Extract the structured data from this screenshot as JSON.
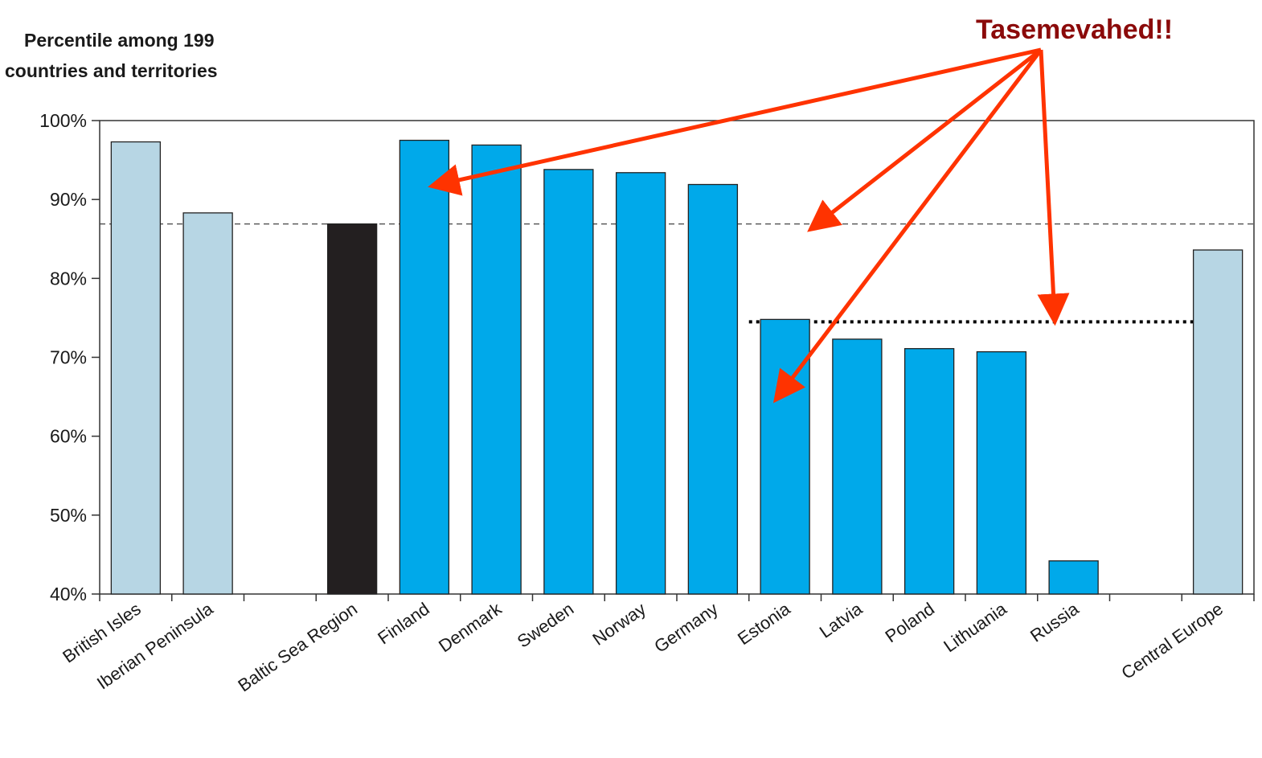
{
  "chart_data": {
    "type": "bar",
    "y_axis_title_lines": [
      "Percentile among 199",
      "countries and territories"
    ],
    "ylim": [
      40,
      100
    ],
    "yticks": [
      40,
      50,
      60,
      70,
      80,
      90,
      100
    ],
    "ytick_labels": [
      "40%",
      "50%",
      "60%",
      "70%",
      "80%",
      "90%",
      "100%"
    ],
    "categories": [
      "British Isles",
      "Iberian Peninsula",
      "",
      "Baltic Sea Region",
      "Finland",
      "Denmark",
      "Sweden",
      "Norway",
      "Germany",
      "Estonia",
      "Latvia",
      "Poland",
      "Lithuania",
      "Russia",
      "",
      "Central Europe"
    ],
    "values": [
      97.3,
      88.3,
      null,
      86.9,
      97.5,
      96.9,
      93.8,
      93.4,
      91.9,
      74.8,
      72.3,
      71.1,
      70.7,
      44.2,
      null,
      83.6
    ],
    "bar_groups": [
      "comparison",
      "comparison",
      "none",
      "region",
      "country",
      "country",
      "country",
      "country",
      "country",
      "country",
      "country",
      "country",
      "country",
      "country",
      "none",
      "comparison"
    ],
    "colors": {
      "comparison": "#b7d6e4",
      "region": "#231f20",
      "country": "#00a9ea",
      "annotation_arrow": "#ff3300",
      "annotation_text": "#8b0a0a"
    },
    "reference_lines": [
      {
        "value": 86.9,
        "style": "dashed"
      },
      {
        "value": 74.5,
        "style": "dotted"
      }
    ],
    "grid": false,
    "legend": "none"
  },
  "annotation": {
    "text": "Tasemevahed!!"
  }
}
